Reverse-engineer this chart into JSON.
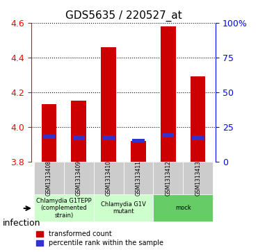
{
  "title": "GDS5635 / 220527_at",
  "samples": [
    "GSM1313408",
    "GSM1313409",
    "GSM1313410",
    "GSM1313411",
    "GSM1313412",
    "GSM1313413"
  ],
  "red_tops": [
    4.13,
    4.15,
    4.46,
    3.92,
    4.58,
    4.29
  ],
  "blue_tops": [
    3.955,
    3.952,
    3.952,
    3.93,
    3.965,
    3.95
  ],
  "blue_bottoms": [
    3.93,
    3.925,
    3.925,
    3.91,
    3.94,
    3.922
  ],
  "bar_bottom": 3.8,
  "ylim_left": [
    3.8,
    4.6
  ],
  "ylim_right": [
    0,
    100
  ],
  "yticks_left": [
    3.8,
    4.0,
    4.2,
    4.4,
    4.6
  ],
  "yticks_right": [
    0,
    25,
    50,
    75,
    100
  ],
  "ytick_labels_right": [
    "0",
    "25",
    "50",
    "75",
    "100%"
  ],
  "groups": [
    {
      "label": "Chlamydia G1TEPP\n(complemented\nstrain)",
      "color": "#ccffcc",
      "indices": [
        0,
        1
      ]
    },
    {
      "label": "Chlamydia G1V\nmutant",
      "color": "#ccffcc",
      "indices": [
        2,
        3
      ]
    },
    {
      "label": "mock",
      "color": "#66cc66",
      "indices": [
        4,
        5
      ]
    }
  ],
  "factor_label": "infection",
  "legend_red": "transformed count",
  "legend_blue": "percentile rank within the sample",
  "bar_color": "#cc0000",
  "blue_color": "#3333cc",
  "bar_width": 0.5,
  "grid_color": "black",
  "bg_color": "#e8e8e8",
  "plot_bg": "white"
}
